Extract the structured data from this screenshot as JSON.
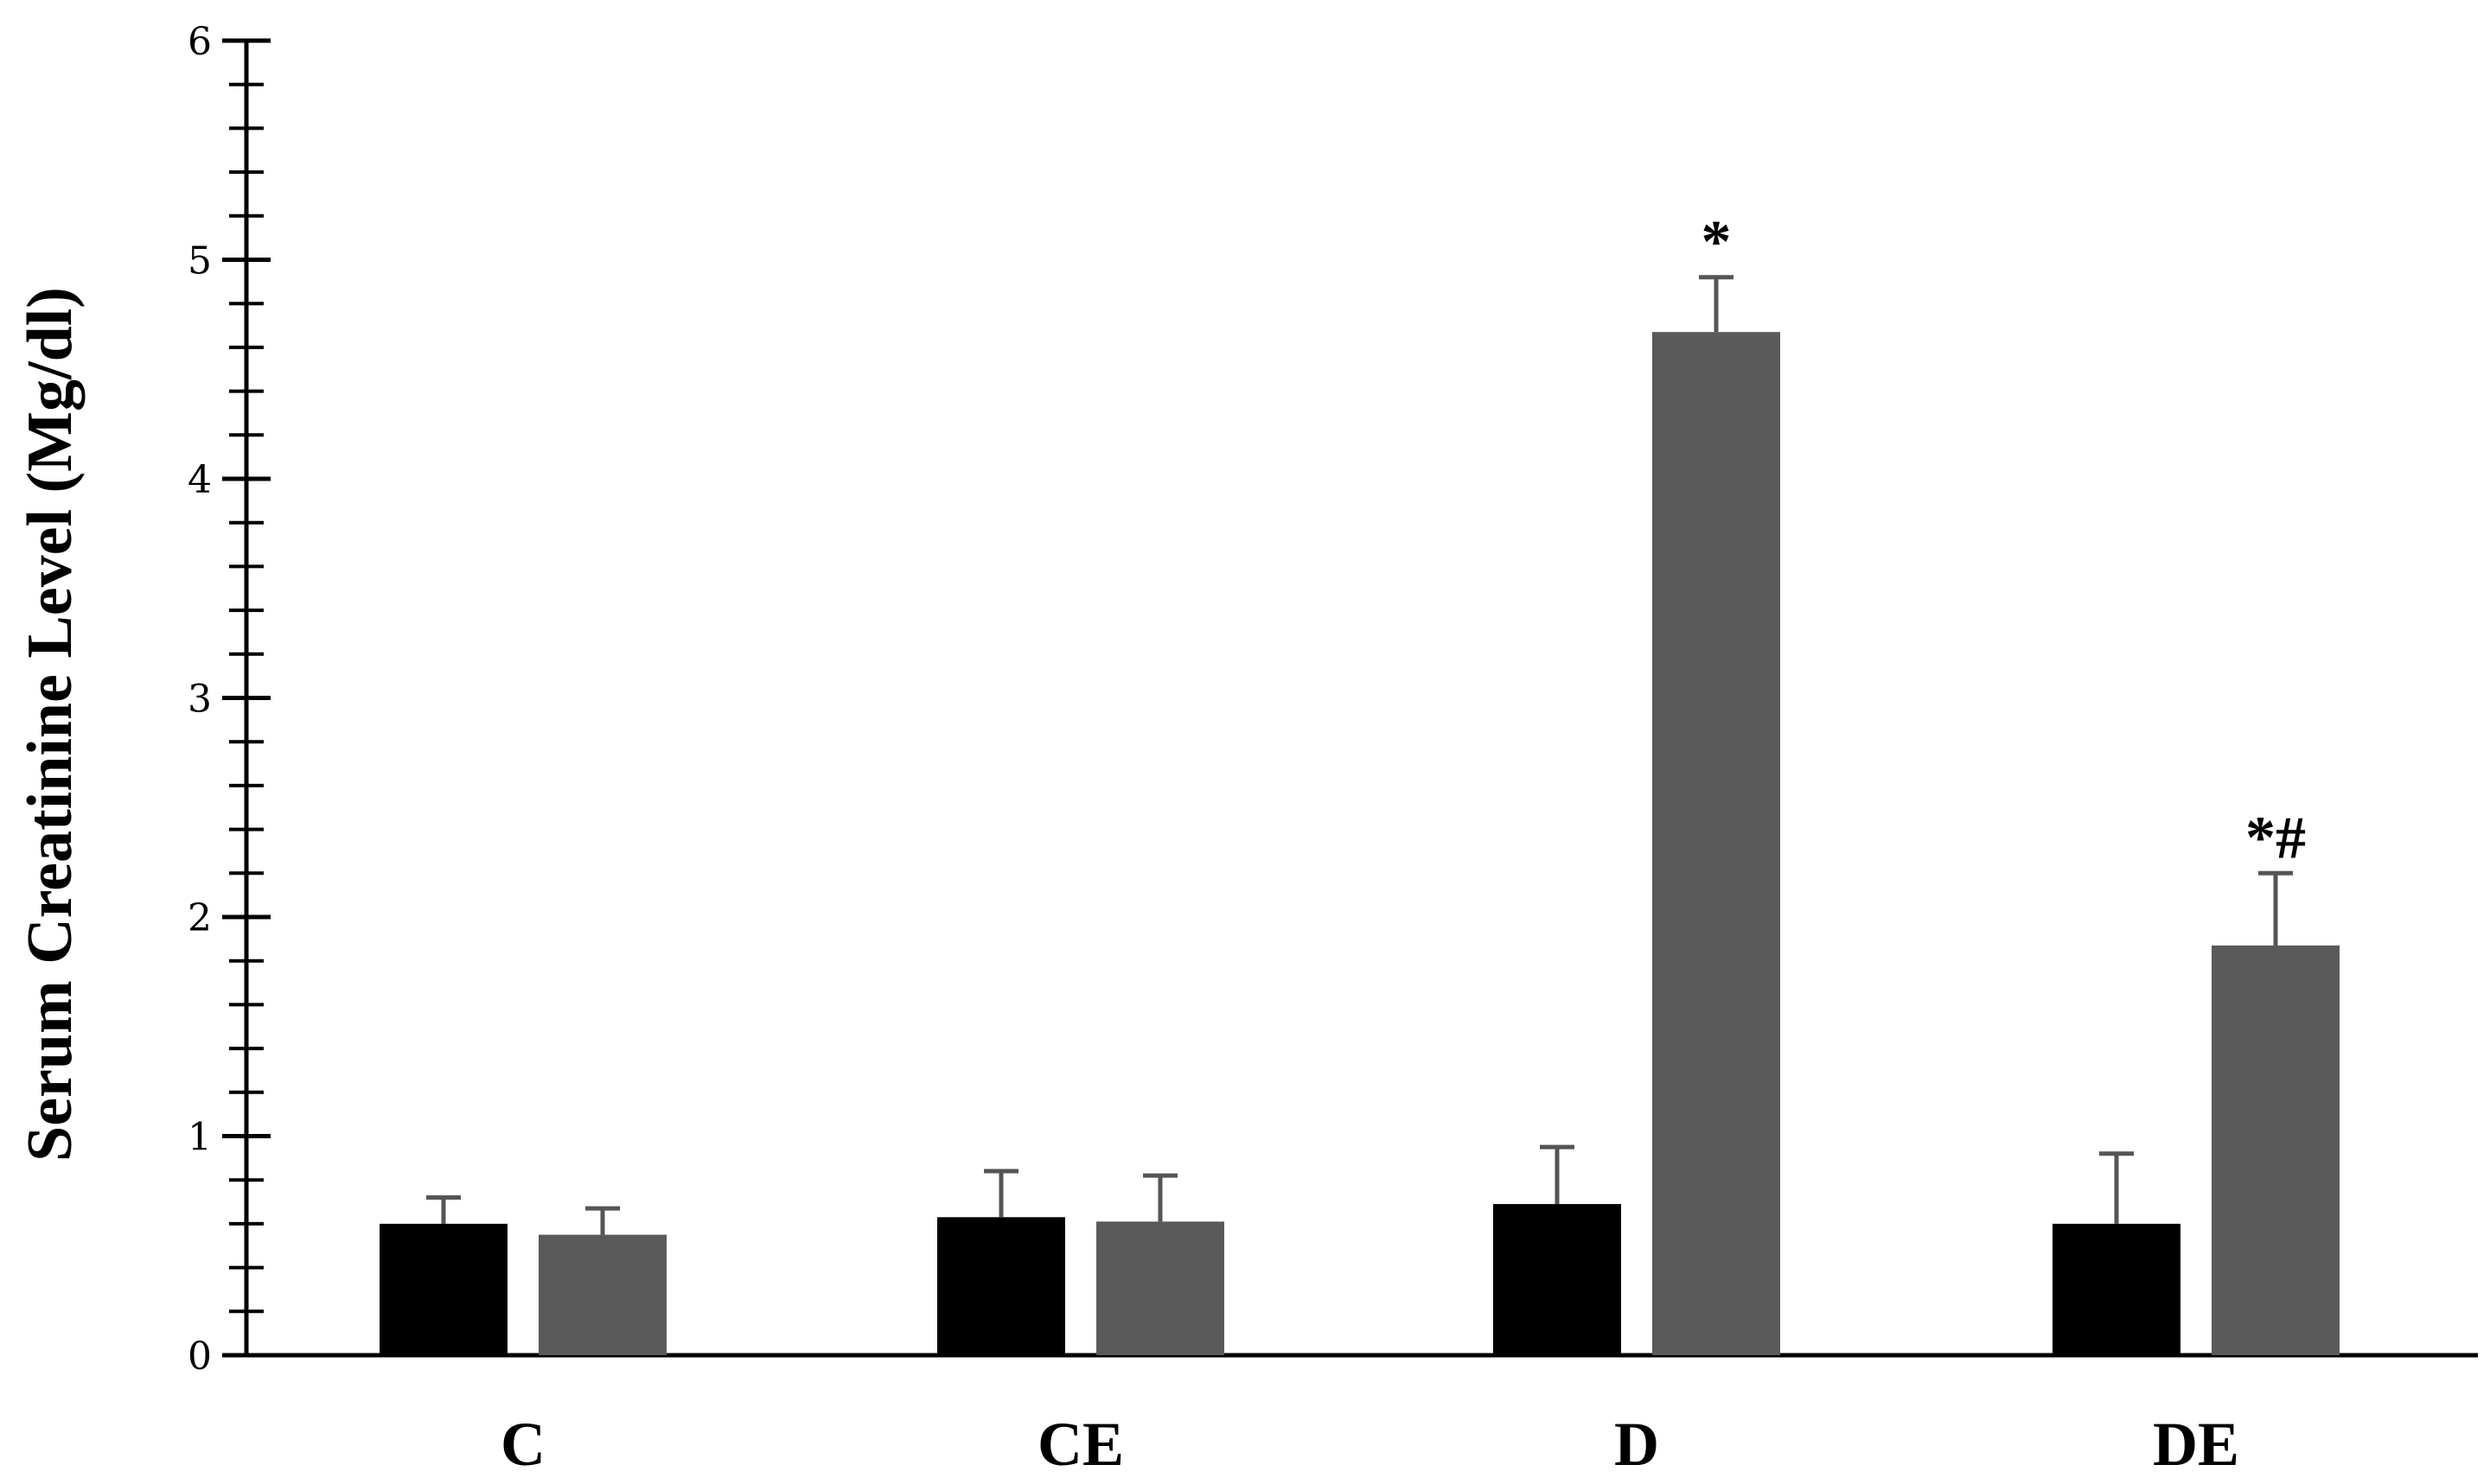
{
  "chart_data": {
    "type": "bar",
    "title": "",
    "xlabel": "",
    "ylabel": "Serum Creatinine Level (Mg/dl)",
    "ylim": [
      0,
      6
    ],
    "y_major_ticks": [
      0,
      1,
      2,
      3,
      4,
      5,
      6
    ],
    "y_minor_step": 0.2,
    "grid": false,
    "legend": "none",
    "categories": [
      "C",
      "CE",
      "D",
      "DE"
    ],
    "series": [
      {
        "color": "#000000",
        "values": [
          0.6,
          0.63,
          0.69,
          0.6
        ],
        "errors": [
          0.12,
          0.21,
          0.26,
          0.32
        ]
      },
      {
        "color": "#5a5a5a",
        "values": [
          0.55,
          0.61,
          4.67,
          1.87
        ],
        "errors": [
          0.12,
          0.21,
          0.25,
          0.33
        ]
      }
    ],
    "annotations": [
      {
        "category": "D",
        "series": 1,
        "text": "*"
      },
      {
        "category": "DE",
        "series": 1,
        "text": "*#"
      }
    ]
  }
}
